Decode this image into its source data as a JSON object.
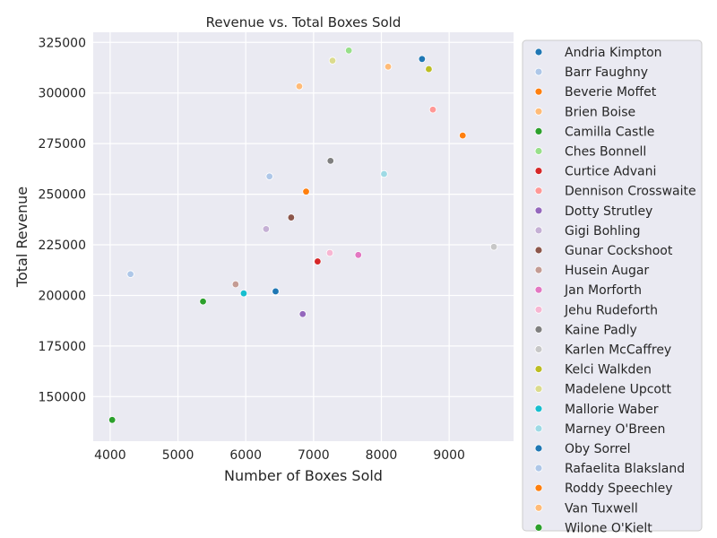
{
  "chart_data": {
    "type": "scatter",
    "title": "Revenue vs. Total Boxes Sold",
    "xlabel": "Number of Boxes Sold",
    "ylabel": "Total Revenue",
    "xlim": [
      3750,
      9950
    ],
    "ylim": [
      128000,
      330000
    ],
    "xticks": [
      4000,
      5000,
      6000,
      7000,
      8000,
      9000
    ],
    "yticks": [
      150000,
      175000,
      200000,
      225000,
      250000,
      275000,
      300000,
      325000
    ],
    "grid": true,
    "legend_position": "outside-right",
    "series": [
      {
        "name": "Andria Kimpton",
        "color": "#1f77b4",
        "points": [
          [
            8600,
            316800
          ]
        ]
      },
      {
        "name": "Barr Faughny",
        "color": "#aec7e8",
        "points": [
          [
            6350,
            258800
          ]
        ]
      },
      {
        "name": "Beverie Moffet",
        "color": "#ff7f0e",
        "points": [
          [
            9200,
            279000
          ]
        ]
      },
      {
        "name": "Brien Boise",
        "color": "#ffbb78",
        "points": [
          [
            6790,
            303300
          ]
        ]
      },
      {
        "name": "Camilla Castle",
        "color": "#2ca02c",
        "points": [
          [
            5370,
            197000
          ]
        ]
      },
      {
        "name": "Ches Bonnell",
        "color": "#98df8a",
        "points": [
          [
            7520,
            321000
          ]
        ]
      },
      {
        "name": "Curtice Advani",
        "color": "#d62728",
        "points": [
          [
            7060,
            216800
          ]
        ]
      },
      {
        "name": "Dennison Crosswaite",
        "color": "#ff9896",
        "points": [
          [
            8760,
            291800
          ]
        ]
      },
      {
        "name": "Dotty Strutley",
        "color": "#9467bd",
        "points": [
          [
            6840,
            190800
          ]
        ]
      },
      {
        "name": "Gigi Bohling",
        "color": "#c5b0d5",
        "points": [
          [
            6300,
            232800
          ]
        ]
      },
      {
        "name": "Gunar Cockshoot",
        "color": "#8c564b",
        "points": [
          [
            6670,
            238500
          ]
        ]
      },
      {
        "name": "Husein Augar",
        "color": "#c49c94",
        "points": [
          [
            5850,
            205500
          ]
        ]
      },
      {
        "name": "Jan Morforth",
        "color": "#e377c2",
        "points": [
          [
            7660,
            220000
          ]
        ]
      },
      {
        "name": "Jehu Rudeforth",
        "color": "#f7b6d2",
        "points": [
          [
            7240,
            221000
          ]
        ]
      },
      {
        "name": "Kaine Padly",
        "color": "#7f7f7f",
        "points": [
          [
            7250,
            266500
          ]
        ]
      },
      {
        "name": "Karlen McCaffrey",
        "color": "#c7c7c7",
        "points": [
          [
            9660,
            224000
          ]
        ]
      },
      {
        "name": "Kelci Walkden",
        "color": "#bcbd22",
        "points": [
          [
            8700,
            311800
          ]
        ]
      },
      {
        "name": "Madelene Upcott",
        "color": "#dbdb8d",
        "points": [
          [
            7280,
            316000
          ]
        ]
      },
      {
        "name": "Mallorie Waber",
        "color": "#17becf",
        "points": [
          [
            5970,
            201000
          ]
        ]
      },
      {
        "name": "Marney O'Breen",
        "color": "#9edae5",
        "points": [
          [
            8040,
            260000
          ]
        ]
      },
      {
        "name": "Oby Sorrel",
        "color": "#1f77b4",
        "points": [
          [
            6440,
            202000
          ]
        ]
      },
      {
        "name": "Rafaelita Blaksland",
        "color": "#aec7e8",
        "points": [
          [
            4300,
            210500
          ]
        ]
      },
      {
        "name": "Roddy Speechley",
        "color": "#ff7f0e",
        "points": [
          [
            6890,
            251300
          ]
        ]
      },
      {
        "name": "Van Tuxwell",
        "color": "#ffbb78",
        "points": [
          [
            8100,
            313000
          ]
        ]
      },
      {
        "name": "Wilone O'Kielt",
        "color": "#2ca02c",
        "points": [
          [
            4030,
            138500
          ]
        ]
      }
    ]
  }
}
